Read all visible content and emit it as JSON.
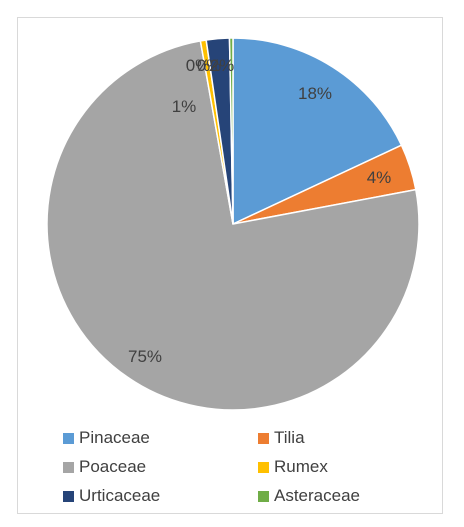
{
  "chart_data": {
    "type": "pie",
    "title": "",
    "categories": [
      "Pinaceae",
      "Tilia",
      "Poaceae",
      "Rumex",
      "Urticaceae",
      "Asteraceae"
    ],
    "values": [
      18,
      4,
      75,
      0.5,
      2,
      0.3
    ],
    "data_labels": [
      "18%",
      "4%",
      "75%",
      "0%",
      "2%",
      "0%"
    ],
    "extra_labels": [
      "1%"
    ],
    "colors": [
      "#5B9BD5",
      "#ED7D31",
      "#A5A5A5",
      "#FFC000",
      "#264478",
      "#70AD47"
    ],
    "legend_position": "bottom"
  }
}
